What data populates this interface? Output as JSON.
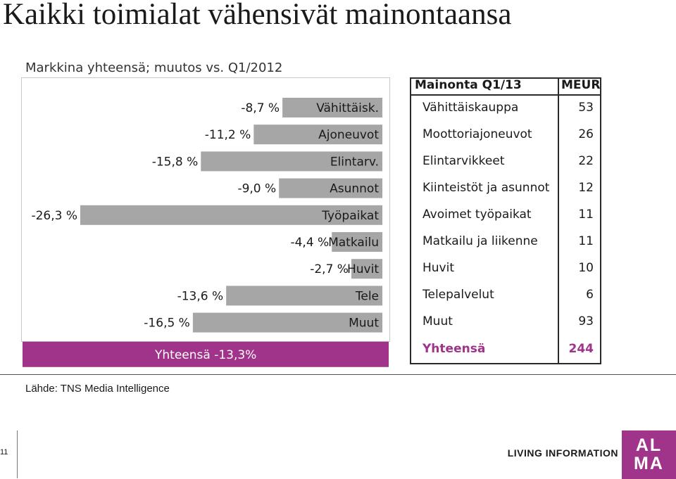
{
  "page": {
    "title": "Kaikki toimialat vähensivät mainontaansa",
    "subtitle": "Markkina yhteensä; muutos vs. Q1/2012",
    "source": "Lähde: TNS Media Intelligence",
    "page_number": "11",
    "tagline": "LIVING INFORMATION",
    "logo_text": "ALMA"
  },
  "colors": {
    "bar": "#a6a6a6",
    "total_bar": "#a0338a",
    "total_text": "#a0338a"
  },
  "chart_data": {
    "type": "bar",
    "orientation": "horizontal",
    "categories": [
      "Vähittäisk.",
      "Ajoneuvot",
      "Elintarv.",
      "Asunnot",
      "Työpaikat",
      "Matkailu",
      "Huvit",
      "Tele",
      "Muut"
    ],
    "values": [
      -8.7,
      -11.2,
      -15.8,
      -9.0,
      -26.3,
      -4.4,
      -2.7,
      -13.6,
      -16.5
    ],
    "value_labels": [
      "-8,7 %",
      "-11,2 %",
      "-15,8 %",
      "-9,0 %",
      "-26,3 %",
      "-4,4 %",
      "-2,7 %",
      "-13,6 %",
      "-16,5 %"
    ],
    "total": {
      "value": -13.3,
      "label": "Yhteensä -13,3%"
    },
    "xlim": [
      -26.3,
      0
    ],
    "grid": false,
    "legend": "none"
  },
  "table": {
    "headers": [
      "Mainonta Q1/13",
      "MEUR"
    ],
    "rows": [
      {
        "name": "Vähittäiskauppa",
        "value": "53"
      },
      {
        "name": "Moottoriajoneuvot",
        "value": "26"
      },
      {
        "name": "Elintarvikkeet",
        "value": "22"
      },
      {
        "name": "Kiinteistöt ja asunnot",
        "value": "12"
      },
      {
        "name": "Avoimet työpaikat",
        "value": "11"
      },
      {
        "name": "Matkailu ja liikenne",
        "value": "11"
      },
      {
        "name": "Huvit",
        "value": "10"
      },
      {
        "name": "Telepalvelut",
        "value": "6"
      },
      {
        "name": "Muut",
        "value": "93"
      }
    ],
    "total": {
      "name": "Yhteensä",
      "value": "244"
    }
  }
}
